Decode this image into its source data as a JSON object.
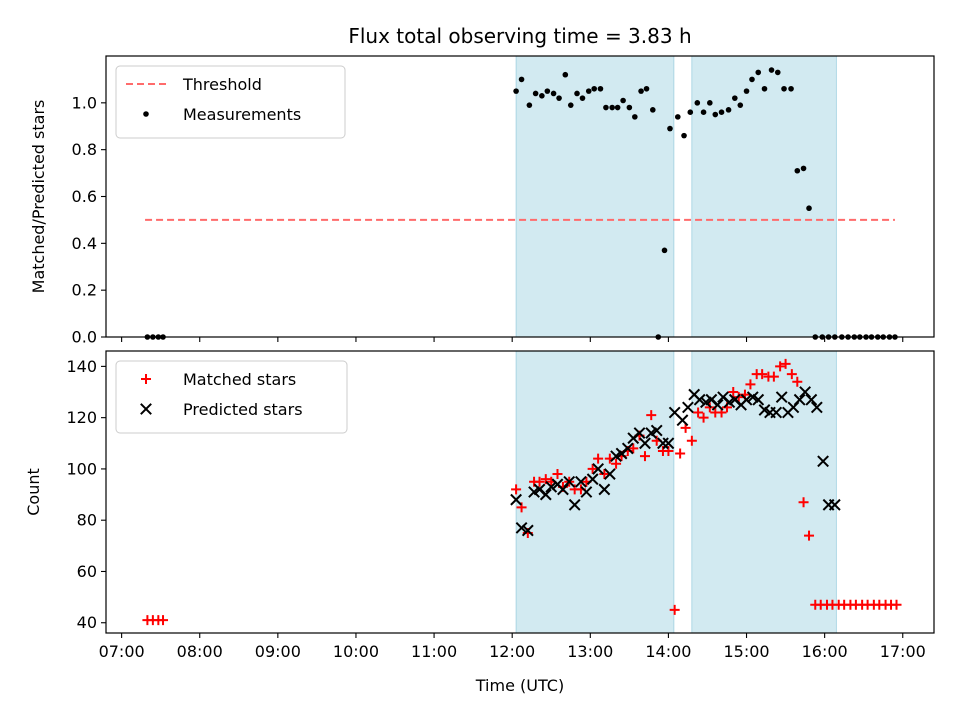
{
  "chart_data": {
    "title": "Flux total observing time = 3.83 h",
    "xlabel": "Time (UTC)",
    "x_ticks": [
      "07:00",
      "08:00",
      "09:00",
      "10:00",
      "11:00",
      "12:00",
      "13:00",
      "14:00",
      "15:00",
      "16:00",
      "17:00"
    ],
    "xlim_hours": [
      6.8,
      17.4
    ],
    "shaded_intervals_hours": [
      [
        12.05,
        14.07
      ],
      [
        14.3,
        16.15
      ]
    ],
    "shade_color": "#add8e6",
    "panels": [
      {
        "type": "scatter",
        "ylabel": "Matched/Predicted stars",
        "ylim": [
          0,
          1.2
        ],
        "y_ticks": [
          0.0,
          0.2,
          0.4,
          0.6,
          0.8,
          1.0
        ],
        "threshold": {
          "name": "Threshold",
          "y": 0.5,
          "x_range": [
            7.3,
            16.9
          ],
          "color": "#ff6b6b"
        },
        "series": [
          {
            "name": "Measurements",
            "marker": "dot",
            "color": "#000000",
            "x": [
              7.33,
              7.4,
              7.47,
              7.53,
              12.05,
              12.12,
              12.22,
              12.3,
              12.38,
              12.45,
              12.53,
              12.6,
              12.68,
              12.75,
              12.83,
              12.9,
              12.98,
              13.05,
              13.13,
              13.2,
              13.28,
              13.35,
              13.42,
              13.5,
              13.57,
              13.65,
              13.72,
              13.8,
              13.87,
              13.95,
              14.02,
              14.12,
              14.2,
              14.28,
              14.37,
              14.45,
              14.53,
              14.6,
              14.68,
              14.77,
              14.85,
              14.92,
              15.0,
              15.07,
              15.15,
              15.23,
              15.32,
              15.4,
              15.48,
              15.57,
              15.65,
              15.73,
              15.8,
              15.88,
              15.97,
              16.05,
              16.13,
              16.22,
              16.3,
              16.38,
              16.45,
              16.53,
              16.6,
              16.68,
              16.75,
              16.83,
              16.9
            ],
            "y": [
              0,
              0,
              0,
              0,
              1.05,
              1.1,
              0.99,
              1.04,
              1.03,
              1.05,
              1.04,
              1.02,
              1.12,
              0.99,
              1.04,
              1.02,
              1.05,
              1.06,
              1.06,
              0.98,
              0.98,
              0.98,
              1.01,
              0.98,
              0.94,
              1.05,
              1.06,
              0.97,
              0.0,
              0.37,
              0.89,
              0.94,
              0.86,
              0.96,
              1.0,
              0.96,
              1.0,
              0.95,
              0.96,
              0.97,
              1.02,
              0.99,
              1.05,
              1.1,
              1.13,
              1.06,
              1.14,
              1.13,
              1.06,
              1.06,
              0.71,
              0.72,
              0.55,
              0,
              0,
              0,
              0,
              0,
              0,
              0,
              0,
              0,
              0,
              0,
              0,
              0,
              0
            ]
          }
        ]
      },
      {
        "type": "scatter",
        "ylabel": "Count",
        "ylim": [
          36,
          146
        ],
        "y_ticks": [
          40,
          60,
          80,
          100,
          120,
          140
        ],
        "series": [
          {
            "name": "Matched stars",
            "marker": "plus",
            "color": "#ff0000",
            "x": [
              7.33,
              7.4,
              7.47,
              7.53,
              12.05,
              12.12,
              12.2,
              12.28,
              12.35,
              12.43,
              12.5,
              12.58,
              12.65,
              12.73,
              12.8,
              12.88,
              12.95,
              13.03,
              13.1,
              13.18,
              13.25,
              13.33,
              13.4,
              13.48,
              13.55,
              13.63,
              13.7,
              13.78,
              13.85,
              13.93,
              14.0,
              14.08,
              14.15,
              14.22,
              14.3,
              14.38,
              14.45,
              14.53,
              14.6,
              14.68,
              14.75,
              14.83,
              14.9,
              14.98,
              15.05,
              15.13,
              15.2,
              15.28,
              15.35,
              15.43,
              15.5,
              15.58,
              15.65,
              15.73,
              15.8,
              15.88,
              15.95,
              16.03,
              16.1,
              16.18,
              16.25,
              16.33,
              16.4,
              16.48,
              16.55,
              16.63,
              16.7,
              16.78,
              16.85,
              16.92
            ],
            "y": [
              41,
              41,
              41,
              41,
              92,
              85,
              75,
              95,
              95,
              96,
              95,
              98,
              93,
              95,
              92,
              92,
              95,
              100,
              104,
              98,
              104,
              102,
              105,
              107,
              108,
              113,
              105,
              121,
              111,
              107,
              107,
              45,
              106,
              116,
              111,
              122,
              120,
              124,
              122,
              122,
              124,
              130,
              128,
              129,
              133,
              137,
              137,
              136,
              136,
              140,
              141,
              137,
              134,
              87,
              74,
              47,
              47,
              47,
              47,
              47,
              47,
              47,
              47,
              47,
              47,
              47,
              47,
              47,
              47,
              47
            ]
          },
          {
            "name": "Predicted stars",
            "marker": "x",
            "color": "#000000",
            "x": [
              12.05,
              12.12,
              12.2,
              12.28,
              12.35,
              12.43,
              12.5,
              12.58,
              12.65,
              12.73,
              12.8,
              12.88,
              12.95,
              13.03,
              13.1,
              13.18,
              13.25,
              13.33,
              13.4,
              13.48,
              13.55,
              13.63,
              13.7,
              13.78,
              13.85,
              13.93,
              14.0,
              14.08,
              14.18,
              14.25,
              14.33,
              14.4,
              14.48,
              14.55,
              14.63,
              14.7,
              14.78,
              14.85,
              14.93,
              15.0,
              15.08,
              15.15,
              15.23,
              15.3,
              15.38,
              15.45,
              15.53,
              15.6,
              15.68,
              15.75,
              15.83,
              15.9,
              15.98,
              16.05,
              16.13
            ],
            "y": [
              88,
              77,
              76,
              91,
              92,
              90,
              93,
              94,
              92,
              95,
              86,
              95,
              91,
              96,
              100,
              92,
              98,
              105,
              106,
              108,
              112,
              114,
              110,
              114,
              115,
              110,
              110,
              122,
              119,
              124,
              129,
              127,
              126,
              127,
              125,
              128,
              126,
              127,
              125,
              127,
              128,
              127,
              123,
              122,
              122,
              128,
              122,
              124,
              127,
              130,
              127,
              124,
              103,
              86,
              86
            ]
          }
        ]
      }
    ]
  }
}
